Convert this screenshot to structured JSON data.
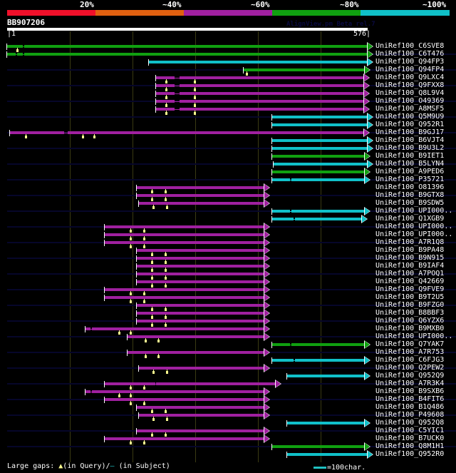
{
  "header": {
    "coverage_labels": [
      "20%",
      "~40%",
      "~60%",
      "~80%",
      "~100%"
    ],
    "coverage_colors": [
      "#f0102a",
      "#e06010",
      "#a020a0",
      "#10a010",
      "#10c0c8"
    ],
    "query_id": "BB907206",
    "watermark": "AlignView.pm Beta rel.7",
    "ruler_start": "|1",
    "ruler_end": "576|"
  },
  "query_length": 576,
  "colors": {
    "purple": "#a020a0",
    "green": "#10a010",
    "cyan": "#10c0c8",
    "query_gap": "#ffff90"
  },
  "hits": [
    {
      "name": "UniRef100_C6SVE8",
      "color": "green",
      "start": 1,
      "end": 576,
      "qgaps": [
        17
      ],
      "sgaps": [
        [
          26,
          28
        ]
      ]
    },
    {
      "name": "UniRef100_C6T476",
      "color": "green",
      "start": 1,
      "end": 576,
      "qgaps": [],
      "sgaps": [
        [
          15,
          17
        ],
        [
          26,
          28
        ]
      ]
    },
    {
      "name": "UniRef100_Q94FP3",
      "color": "cyan",
      "start": 227,
      "end": 576,
      "qgaps": [],
      "sgaps": []
    },
    {
      "name": "UniRef100_Q94FP4",
      "color": "green",
      "start": 378,
      "end": 572,
      "qgaps": [
        383
      ],
      "sgaps": []
    },
    {
      "name": "UniRef100_Q9LXC4",
      "color": "purple",
      "start": 238,
      "end": 570,
      "qgaps": [
        254,
        300
      ],
      "sgaps": [
        [
          268,
          276
        ]
      ]
    },
    {
      "name": "UniRef100_Q9FXX8",
      "color": "purple",
      "start": 238,
      "end": 570,
      "qgaps": [
        254,
        300
      ],
      "sgaps": [
        [
          268,
          276
        ]
      ]
    },
    {
      "name": "UniRef100_Q8L9V4",
      "color": "purple",
      "start": 238,
      "end": 570,
      "qgaps": [
        254,
        300
      ],
      "sgaps": [
        [
          268,
          276
        ]
      ]
    },
    {
      "name": "UniRef100_O49369",
      "color": "purple",
      "start": 238,
      "end": 570,
      "qgaps": [
        254,
        300
      ],
      "sgaps": [
        [
          268,
          276
        ]
      ]
    },
    {
      "name": "UniRef100_A8MSF5",
      "color": "purple",
      "start": 238,
      "end": 570,
      "qgaps": [
        254,
        300
      ],
      "sgaps": [
        [
          268,
          276
        ]
      ]
    },
    {
      "name": "UniRef100_Q5M9U9",
      "color": "cyan",
      "start": 424,
      "end": 576,
      "qgaps": [],
      "sgaps": []
    },
    {
      "name": "UniRef100_Q952R1",
      "color": "cyan",
      "start": 424,
      "end": 576,
      "qgaps": [],
      "sgaps": []
    },
    {
      "name": "UniRef100_B9GJ17",
      "color": "purple",
      "start": 6,
      "end": 570,
      "qgaps": [
        31,
        122,
        140
      ],
      "sgaps": [
        [
          92,
          98
        ]
      ]
    },
    {
      "name": "UniRef100_B6VJT4",
      "color": "cyan",
      "start": 424,
      "end": 576,
      "qgaps": [],
      "sgaps": []
    },
    {
      "name": "UniRef100_B9U3L2",
      "color": "cyan",
      "start": 424,
      "end": 576,
      "qgaps": [],
      "sgaps": []
    },
    {
      "name": "UniRef100_B9IET1",
      "color": "green",
      "start": 424,
      "end": 572,
      "qgaps": [],
      "sgaps": []
    },
    {
      "name": "UniRef100_B5LYN4",
      "color": "cyan",
      "start": 426,
      "end": 576,
      "qgaps": [],
      "sgaps": []
    },
    {
      "name": "UniRef100_A9PED6",
      "color": "green",
      "start": 424,
      "end": 572,
      "qgaps": [],
      "sgaps": []
    },
    {
      "name": "UniRef100_P35721",
      "color": "cyan",
      "start": 424,
      "end": 572,
      "qgaps": [],
      "sgaps": [
        [
          452,
          454
        ]
      ]
    },
    {
      "name": "UniRef100_O81396",
      "color": "purple",
      "start": 208,
      "end": 411,
      "qgaps": [
        232,
        253
      ],
      "sgaps": []
    },
    {
      "name": "UniRef100_B9GTX8",
      "color": "purple",
      "start": 208,
      "end": 411,
      "qgaps": [
        232,
        253
      ],
      "sgaps": []
    },
    {
      "name": "UniRef100_B9SDW5",
      "color": "purple",
      "start": 211,
      "end": 411,
      "qgaps": [
        234,
        255
      ],
      "sgaps": []
    },
    {
      "name": "UniRef100_UPI000..",
      "color": "cyan",
      "start": 424,
      "end": 572,
      "qgaps": [],
      "sgaps": [
        [
          452,
          454
        ]
      ]
    },
    {
      "name": "UniRef100_Q1XGB9",
      "color": "cyan",
      "start": 424,
      "end": 567,
      "qgaps": [],
      "sgaps": [
        [
          458,
          460
        ]
      ]
    },
    {
      "name": "UniRef100_UPI000..",
      "color": "purple",
      "start": 157,
      "end": 411,
      "qgaps": [
        198,
        219
      ],
      "sgaps": []
    },
    {
      "name": "UniRef100_UPI000..",
      "color": "purple",
      "start": 157,
      "end": 411,
      "qgaps": [
        198,
        219
      ],
      "sgaps": []
    },
    {
      "name": "UniRef100_A7R1Q8",
      "color": "purple",
      "start": 157,
      "end": 411,
      "qgaps": [
        198,
        219
      ],
      "sgaps": []
    },
    {
      "name": "UniRef100_B9PA48",
      "color": "purple",
      "start": 208,
      "end": 411,
      "qgaps": [
        232,
        253
      ],
      "sgaps": []
    },
    {
      "name": "UniRef100_B9N915",
      "color": "purple",
      "start": 208,
      "end": 411,
      "qgaps": [
        232,
        253
      ],
      "sgaps": []
    },
    {
      "name": "UniRef100_B9IAF4",
      "color": "purple",
      "start": 208,
      "end": 411,
      "qgaps": [
        232,
        253
      ],
      "sgaps": []
    },
    {
      "name": "UniRef100_A7POQ1",
      "color": "purple",
      "start": 208,
      "end": 411,
      "qgaps": [
        232,
        253
      ],
      "sgaps": []
    },
    {
      "name": "UniRef100_Q42669",
      "color": "purple",
      "start": 208,
      "end": 411,
      "qgaps": [
        232,
        253
      ],
      "sgaps": []
    },
    {
      "name": "UniRef100_Q9FVE9",
      "color": "purple",
      "start": 157,
      "end": 411,
      "qgaps": [
        198,
        219
      ],
      "sgaps": []
    },
    {
      "name": "UniRef100_B9T2U5",
      "color": "purple",
      "start": 157,
      "end": 411,
      "qgaps": [
        198,
        219
      ],
      "sgaps": []
    },
    {
      "name": "UniRef100_B9FZG0",
      "color": "purple",
      "start": 208,
      "end": 411,
      "qgaps": [
        232,
        253
      ],
      "sgaps": []
    },
    {
      "name": "UniRef100_B8BBF3",
      "color": "purple",
      "start": 208,
      "end": 411,
      "qgaps": [
        232,
        253
      ],
      "sgaps": []
    },
    {
      "name": "UniRef100_Q6YZX6",
      "color": "purple",
      "start": 208,
      "end": 411,
      "qgaps": [
        232,
        253
      ],
      "sgaps": []
    },
    {
      "name": "UniRef100_B9MXB0",
      "color": "purple",
      "start": 126,
      "end": 411,
      "qgaps": [
        179,
        198
      ],
      "sgaps": [
        [
          134,
          136
        ]
      ]
    },
    {
      "name": "UniRef100_UPI000..",
      "color": "purple",
      "start": 193,
      "end": 411,
      "qgaps": [
        221,
        242
      ],
      "sgaps": []
    },
    {
      "name": "UniRef100_Q7YAK7",
      "color": "green",
      "start": 424,
      "end": 572,
      "qgaps": [],
      "sgaps": [
        [
          452,
          454
        ]
      ]
    },
    {
      "name": "UniRef100_A7R753",
      "color": "purple",
      "start": 193,
      "end": 411,
      "qgaps": [
        221,
        242
      ],
      "sgaps": []
    },
    {
      "name": "UniRef100_C6FJG3",
      "color": "cyan",
      "start": 424,
      "end": 572,
      "qgaps": [],
      "sgaps": [
        [
          458,
          460
        ]
      ]
    },
    {
      "name": "UniRef100_Q2PEW2",
      "color": "purple",
      "start": 211,
      "end": 411,
      "qgaps": [
        234,
        255
      ],
      "sgaps": []
    },
    {
      "name": "UniRef100_Q952Q9",
      "color": "cyan",
      "start": 448,
      "end": 572,
      "qgaps": [],
      "sgaps": []
    },
    {
      "name": "UniRef100_A7R3K4",
      "color": "purple",
      "start": 157,
      "end": 429,
      "qgaps": [
        198,
        219
      ],
      "sgaps": [
        [
          237,
          239
        ]
      ]
    },
    {
      "name": "UniRef100_B9SXB6",
      "color": "purple",
      "start": 126,
      "end": 411,
      "qgaps": [
        179,
        198
      ],
      "sgaps": [
        [
          134,
          136
        ]
      ]
    },
    {
      "name": "UniRef100_B4FIT6",
      "color": "purple",
      "start": 157,
      "end": 411,
      "qgaps": [
        198,
        219
      ],
      "sgaps": []
    },
    {
      "name": "UniRef100_B1Q486",
      "color": "purple",
      "start": 208,
      "end": 411,
      "qgaps": [
        232,
        253
      ],
      "sgaps": []
    },
    {
      "name": "UniRef100_P49608",
      "color": "purple",
      "start": 211,
      "end": 411,
      "qgaps": [
        234,
        255
      ],
      "sgaps": []
    },
    {
      "name": "UniRef100_Q952Q8",
      "color": "cyan",
      "start": 448,
      "end": 572,
      "qgaps": [],
      "sgaps": []
    },
    {
      "name": "UniRef100_C5YIC1",
      "color": "purple",
      "start": 208,
      "end": 411,
      "qgaps": [
        232,
        253
      ],
      "sgaps": []
    },
    {
      "name": "UniRef100_B7UCK0",
      "color": "purple",
      "start": 157,
      "end": 411,
      "qgaps": [
        198,
        219
      ],
      "sgaps": []
    },
    {
      "name": "UniRef100_Q8M1H1",
      "color": "green",
      "start": 424,
      "end": 572,
      "qgaps": [],
      "sgaps": []
    },
    {
      "name": "UniRef100_Q952R0",
      "color": "cyan",
      "start": 448,
      "end": 576,
      "qgaps": [],
      "sgaps": []
    }
  ],
  "footer": {
    "legend_prefix": "Large gaps:",
    "legend_query_glyph": "▲",
    "legend_query": "(in Query)/",
    "legend_subject_glyph": "—",
    "legend_subject": " (in Subject)",
    "scale_label": "=100char."
  }
}
